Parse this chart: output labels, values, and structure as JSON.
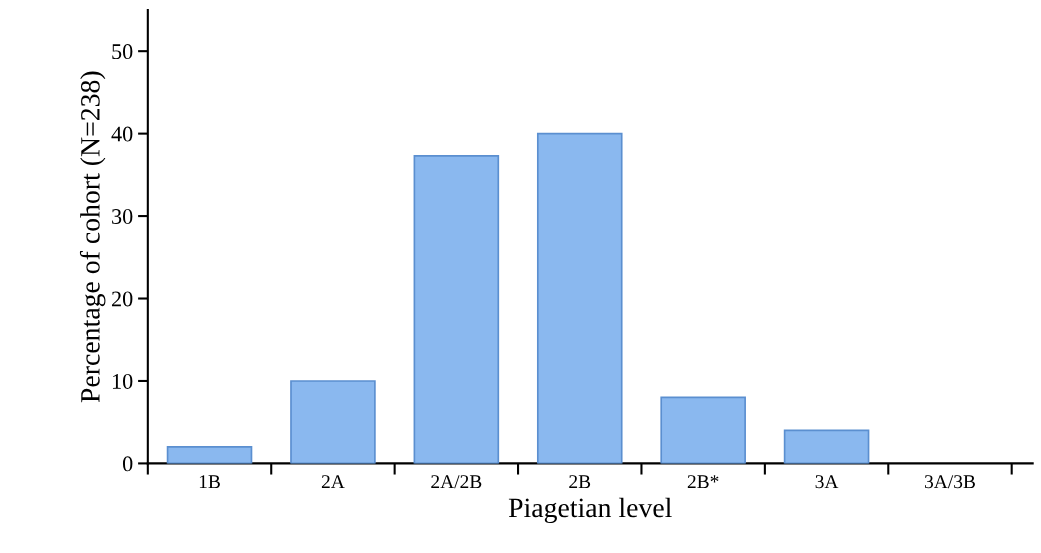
{
  "chart_data": {
    "type": "bar",
    "xlabel": "Piagetian level",
    "ylabel": "Percentage of cohort (N=238)",
    "categories": [
      "1B",
      "2A",
      "2A/2B",
      "2B",
      "2B*",
      "3A",
      "3A/3B"
    ],
    "values": [
      2,
      10,
      37.3,
      40,
      8,
      4,
      0
    ],
    "color": "#8ab8ef",
    "ylim": [
      0,
      55
    ],
    "yticks": [
      0,
      10,
      20,
      30,
      40,
      50
    ],
    "grid": false,
    "legend": false
  }
}
